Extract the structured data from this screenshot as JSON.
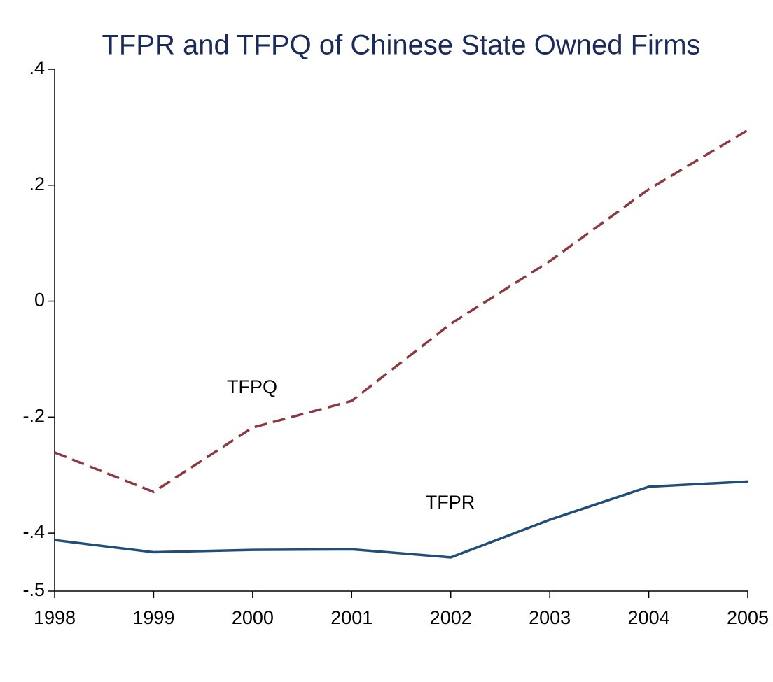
{
  "chart_data": {
    "type": "line",
    "title": "TFPR and TFPQ of Chinese State Owned Firms",
    "x": [
      1998,
      1999,
      2000,
      2001,
      2002,
      2003,
      2004,
      2005
    ],
    "series": [
      {
        "name": "TFPQ",
        "color": "#8b3a42",
        "style": "dashed",
        "values": [
          -0.261,
          -0.329,
          -0.218,
          -0.172,
          -0.039,
          0.069,
          0.193,
          0.295
        ]
      },
      {
        "name": "TFPR",
        "color": "#1f4e79",
        "style": "solid",
        "values": [
          -0.412,
          -0.433,
          -0.429,
          -0.428,
          -0.442,
          -0.377,
          -0.32,
          -0.311
        ]
      }
    ],
    "xlim": [
      1998,
      2005
    ],
    "xticks": [
      1998,
      1999,
      2000,
      2001,
      2002,
      2003,
      2004,
      2005
    ],
    "ylim": [
      -0.5,
      0.4
    ],
    "yticks": [
      {
        "value": 0.4,
        "label": ".4"
      },
      {
        "value": 0.2,
        "label": ".2"
      },
      0,
      {
        "value": -0.2,
        "label": "-.2"
      },
      {
        "value": -0.4,
        "label": "-.4"
      },
      {
        "value": -0.5,
        "label": "-.5"
      }
    ],
    "grid": false
  }
}
